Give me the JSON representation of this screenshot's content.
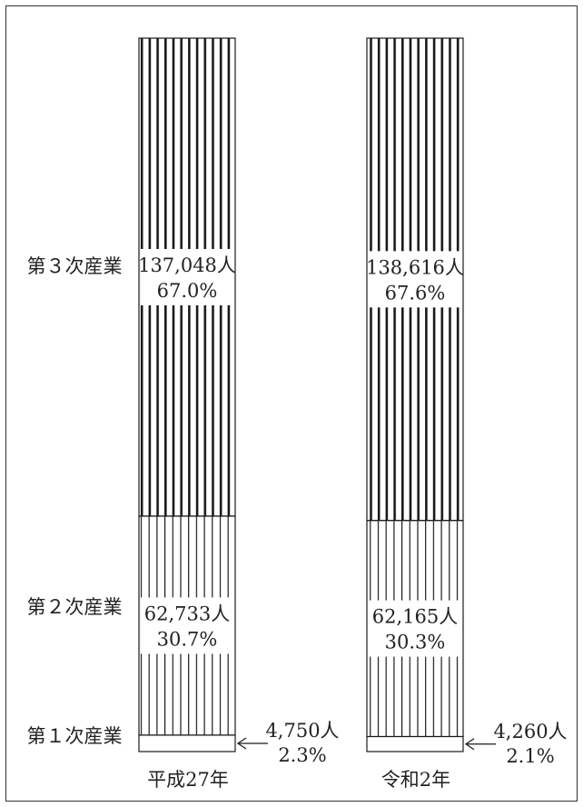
{
  "chart_data": {
    "type": "bar",
    "stacked": true,
    "normalized_percent": true,
    "categories": [
      "平成27年",
      "令和2年"
    ],
    "series": [
      {
        "name": "第３次産業",
        "values": [
          67.0,
          67.6
        ],
        "count_labels": [
          "137,048人",
          "138,616人"
        ],
        "pct_labels": [
          "67.0%",
          "67.6%"
        ]
      },
      {
        "name": "第２次産業",
        "values": [
          30.7,
          30.3
        ],
        "count_labels": [
          "62,733人",
          "62,165人"
        ],
        "pct_labels": [
          "30.7%",
          "30.3%"
        ]
      },
      {
        "name": "第１次産業",
        "values": [
          2.3,
          2.1
        ],
        "count_labels": [
          "4,750人",
          "4,260人"
        ],
        "pct_labels": [
          "2.3%",
          "2.1%"
        ]
      }
    ],
    "legend": "left side labels",
    "grid": false
  }
}
